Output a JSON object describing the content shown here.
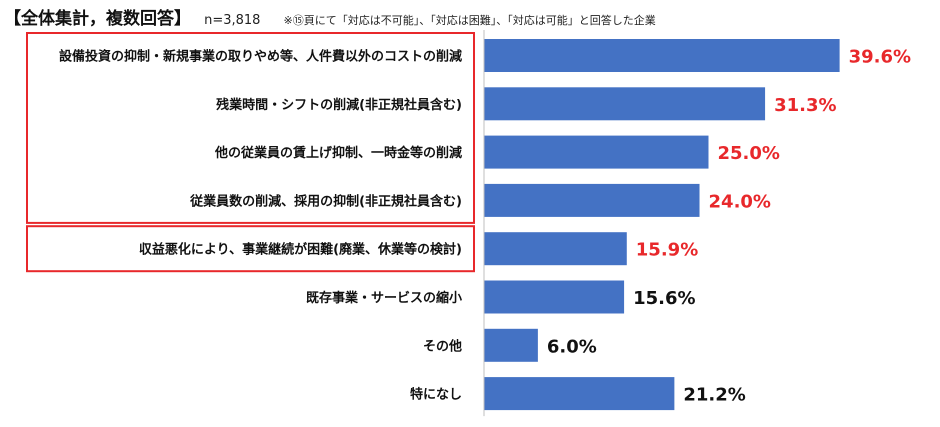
{
  "header": {
    "title": "【全体集計，複数回答】",
    "sample": "n=3,818",
    "note": "※⑮頁にて「対応は不可能」、「対応は困難」、「対応は可能」と回答した企業"
  },
  "chart_data": {
    "type": "bar",
    "orientation": "horizontal",
    "categories": [
      "設備投資の抑制・新規事業の取りやめ等、人件費以外のコストの削減",
      "残業時間・シフトの削減(非正規社員含む)",
      "他の従業員の賃上げ抑制、一時金等の削減",
      "従業員数の削減、採用の抑制(非正規社員含む)",
      "収益悪化により、事業継続が困難(廃業、休業等の検討)",
      "既存事業・サービスの縮小",
      "その他",
      "特になし"
    ],
    "values": [
      39.6,
      31.3,
      25.0,
      24.0,
      15.9,
      15.6,
      6.0,
      21.2
    ],
    "value_labels": [
      "39.6%",
      "31.3%",
      "25.0%",
      "24.0%",
      "15.9%",
      "15.6%",
      "6.0%",
      "21.2%"
    ],
    "highlighted_red": [
      true,
      true,
      true,
      true,
      true,
      false,
      false,
      false
    ],
    "highlight_boxes": [
      [
        0,
        3
      ],
      [
        4,
        4
      ]
    ],
    "xlim": [
      0,
      44
    ],
    "bar_color": "#4472C4",
    "highlight_color": "#E8282B",
    "label_color_default": "#111111",
    "grid": false,
    "legend": "none"
  }
}
